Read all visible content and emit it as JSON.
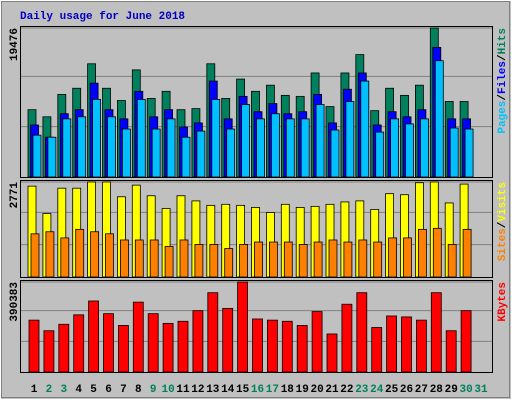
{
  "chart_data": [
    {
      "type": "bar",
      "title": "Daily usage for June 2018",
      "legend_separator": "/",
      "ylim": [
        0,
        19476
      ],
      "yticks": [
        19476
      ],
      "series": [
        {
          "name": "Hits",
          "color": "#00805c",
          "values": [
            8800,
            7870,
            10800,
            11600,
            14800,
            11600,
            10000,
            14000,
            10270,
            11200,
            8800,
            8940,
            14800,
            10270,
            12800,
            11200,
            12000,
            10670,
            10540,
            13600,
            9200,
            13600,
            16000,
            8670,
            11600,
            10670,
            12000,
            19476,
            9870,
            9870,
            null
          ]
        },
        {
          "name": "Files",
          "color": "#0000ff",
          "values": [
            6800,
            5200,
            8270,
            8800,
            12270,
            8800,
            7600,
            11200,
            7870,
            8800,
            6540,
            7070,
            12540,
            7600,
            10540,
            8540,
            9600,
            8270,
            8540,
            10800,
            7070,
            11470,
            13600,
            6800,
            8540,
            7870,
            8800,
            16940,
            7600,
            7600,
            null
          ]
        },
        {
          "name": "Pages",
          "color": "#00c0ff",
          "values": [
            5470,
            5200,
            7600,
            7870,
            10140,
            7870,
            6270,
            10140,
            6270,
            7600,
            5200,
            6000,
            10140,
            6270,
            9470,
            7600,
            8270,
            7600,
            7600,
            9470,
            6140,
            9870,
            12540,
            5870,
            7600,
            6940,
            7600,
            15200,
            6400,
            6270,
            null
          ]
        }
      ]
    },
    {
      "type": "bar",
      "legend_separator": "/",
      "ylim": [
        0,
        2771
      ],
      "yticks": [
        2771
      ],
      "series": [
        {
          "name": "Visits",
          "color": "#ffff00",
          "values": [
            2650,
            1850,
            2590,
            2590,
            2771,
            2771,
            2340,
            2680,
            2370,
            2000,
            2370,
            2220,
            2090,
            2120,
            2090,
            2030,
            1880,
            2120,
            2030,
            2060,
            2120,
            2190,
            2220,
            1970,
            2430,
            2400,
            2750,
            2771,
            2160,
            2710,
            null
          ]
        },
        {
          "name": "Sites",
          "color": "#ff8000",
          "values": [
            1260,
            1320,
            1140,
            1390,
            1320,
            1260,
            1080,
            1080,
            1080,
            890,
            1080,
            950,
            950,
            830,
            950,
            1020,
            1020,
            1020,
            950,
            1020,
            1080,
            1020,
            1080,
            1020,
            1140,
            1140,
            1390,
            1420,
            950,
            1390,
            null
          ]
        }
      ]
    },
    {
      "type": "bar",
      "ylim": [
        0,
        390383
      ],
      "yticks": [
        390383
      ],
      "categories": [
        "1",
        "2",
        "3",
        "4",
        "5",
        "6",
        "7",
        "8",
        "9",
        "10",
        "11",
        "12",
        "13",
        "14",
        "15",
        "16",
        "17",
        "18",
        "19",
        "20",
        "21",
        "22",
        "23",
        "24",
        "25",
        "26",
        "27",
        "28",
        "29",
        "30",
        "31"
      ],
      "category_colors": [
        "#000000",
        "#00805c",
        "#00805c",
        "#000000",
        "#000000",
        "#000000",
        "#000000",
        "#000000",
        "#00805c",
        "#00805c",
        "#000000",
        "#000000",
        "#000000",
        "#000000",
        "#000000",
        "#00805c",
        "#00805c",
        "#000000",
        "#000000",
        "#000000",
        "#000000",
        "#000000",
        "#00805c",
        "#00805c",
        "#000000",
        "#000000",
        "#000000",
        "#000000",
        "#000000",
        "#00805c",
        "#00805c"
      ],
      "series": [
        {
          "name": "KBytes",
          "color": "#ff0000",
          "values": [
            225000,
            179000,
            207000,
            248000,
            308000,
            253000,
            202000,
            303000,
            253000,
            211000,
            220000,
            266000,
            344000,
            276000,
            390383,
            230000,
            225000,
            220000,
            202000,
            262000,
            165000,
            294000,
            344000,
            193000,
            243000,
            239000,
            225000,
            344000,
            179000,
            266000,
            null
          ]
        }
      ]
    }
  ]
}
